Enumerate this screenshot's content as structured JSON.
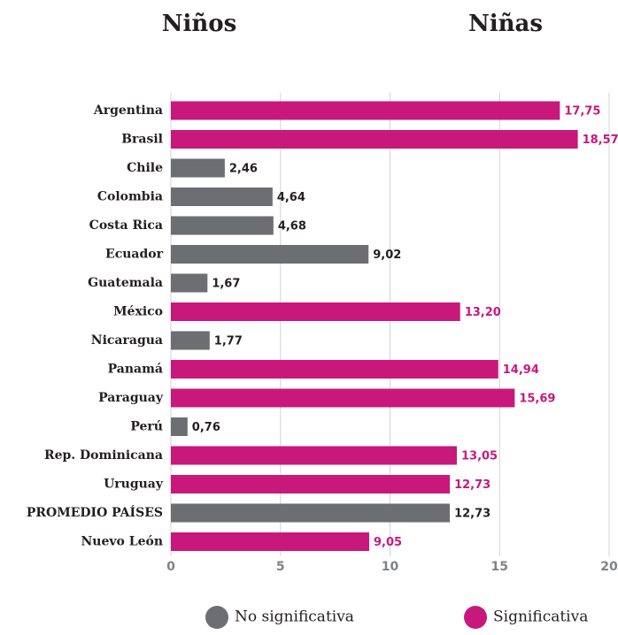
{
  "chart_data": {
    "type": "barh",
    "headings": [
      "Niños",
      "Niñas"
    ],
    "categories": [
      "Argentina",
      "Brasil",
      "Chile",
      "Colombia",
      "Costa Rica",
      "Ecuador",
      "Guatemala",
      "México",
      "Nicaragua",
      "Panamá",
      "Paraguay",
      "Perú",
      "Rep. Dominicana",
      "Uruguay",
      "PROMEDIO PAÍSES",
      "Nuevo León"
    ],
    "series": [
      {
        "name": "No significativa",
        "color": "#6d6e71",
        "label_color": "#231f20",
        "values": [
          null,
          null,
          2.46,
          4.64,
          4.68,
          9.02,
          1.67,
          null,
          1.77,
          null,
          null,
          0.76,
          null,
          null,
          12.73,
          null
        ],
        "value_labels": [
          null,
          null,
          "2,46",
          "4,64",
          "4,68",
          "9,02",
          "1,67",
          null,
          "1,77",
          null,
          null,
          "0,76",
          null,
          null,
          "12,73",
          null
        ]
      },
      {
        "name": "Significativa",
        "color": "#c8187c",
        "label_color": "#c8187c",
        "values": [
          17.75,
          18.57,
          null,
          null,
          null,
          null,
          null,
          13.2,
          null,
          14.94,
          15.69,
          null,
          13.05,
          12.73,
          null,
          9.05
        ],
        "value_labels": [
          "17,75",
          "18,57",
          null,
          null,
          null,
          null,
          null,
          "13,20",
          null,
          "14,94",
          "15,69",
          null,
          "13,05",
          "12,73",
          null,
          "9,05"
        ]
      }
    ],
    "xlim": [
      0,
      20
    ],
    "xticks": [
      0,
      5,
      10,
      15,
      20
    ],
    "grid": true,
    "legend": "bottom"
  }
}
